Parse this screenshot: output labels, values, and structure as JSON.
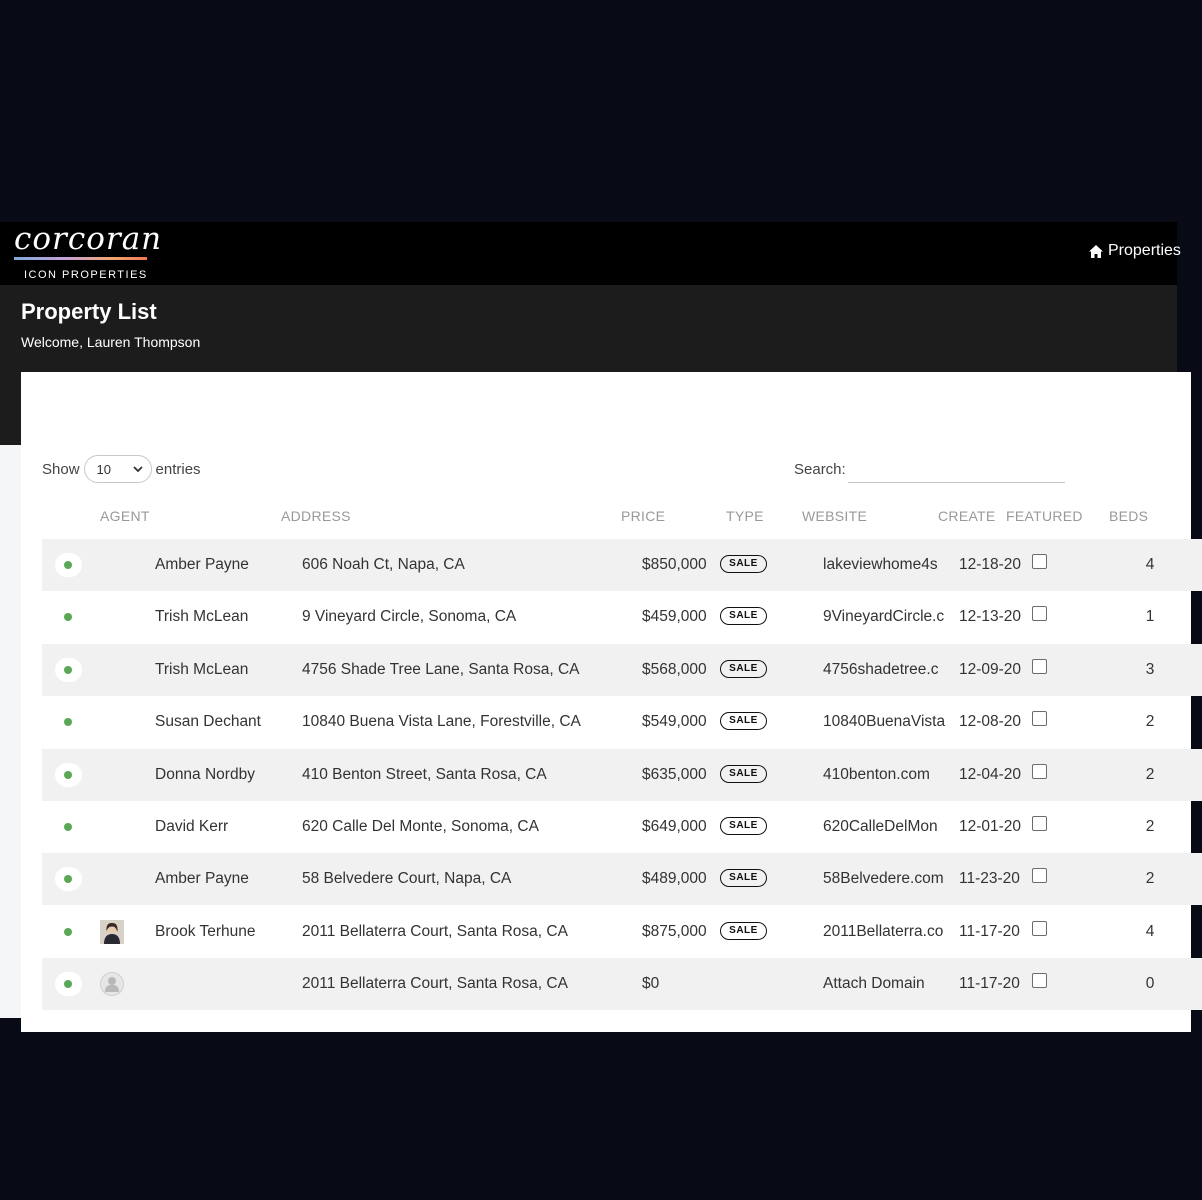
{
  "app": {
    "logo_word": "corcoran",
    "logo_sub": "ICON PROPERTIES",
    "nav_link": "Properties"
  },
  "header": {
    "title": "Property List",
    "welcome": "Welcome, Lauren Thompson"
  },
  "controls": {
    "show_label": "Show",
    "entries_label": "entries",
    "length_value": "10",
    "search_label": "Search:",
    "search_value": ""
  },
  "table": {
    "columns": [
      "AGENT",
      "ADDRESS",
      "PRICE",
      "TYPE",
      "WEBSITE",
      "CREATE",
      "FEATURED",
      "BEDS"
    ],
    "rows": [
      {
        "agent": "Amber Payne",
        "avatar": "none",
        "address": "606 Noah Ct, Napa, CA",
        "price": "$850,000",
        "type": "SALE",
        "website": "lakeviewhome4s",
        "created": "12-18-20",
        "featured": false,
        "beds": "4"
      },
      {
        "agent": "Trish McLean",
        "avatar": "none",
        "address": "9 Vineyard Circle, Sonoma, CA",
        "price": "$459,000",
        "type": "SALE",
        "website": "9VineyardCircle.c",
        "created": "12-13-20",
        "featured": false,
        "beds": "1"
      },
      {
        "agent": "Trish McLean",
        "avatar": "none",
        "address": "4756 Shade Tree Lane, Santa Rosa, CA",
        "price": "$568,000",
        "type": "SALE",
        "website": "4756shadetree.c",
        "created": "12-09-20",
        "featured": false,
        "beds": "3"
      },
      {
        "agent": "Susan Dechant",
        "avatar": "none",
        "address": "10840 Buena Vista Lane, Forestville, CA",
        "price": "$549,000",
        "type": "SALE",
        "website": "10840BuenaVista",
        "created": "12-08-20",
        "featured": false,
        "beds": "2"
      },
      {
        "agent": "Donna Nordby",
        "avatar": "none",
        "address": "410 Benton Street, Santa Rosa, CA",
        "price": "$635,000",
        "type": "SALE",
        "website": "410benton.com",
        "created": "12-04-20",
        "featured": false,
        "beds": "2"
      },
      {
        "agent": "David Kerr",
        "avatar": "none",
        "address": "620 Calle Del Monte, Sonoma, CA",
        "price": "$649,000",
        "type": "SALE",
        "website": "620CalleDelMon",
        "created": "12-01-20",
        "featured": false,
        "beds": "2"
      },
      {
        "agent": "Amber Payne",
        "avatar": "none",
        "address": "58 Belvedere Court, Napa, CA",
        "price": "$489,000",
        "type": "SALE",
        "website": "58Belvedere.com",
        "created": "11-23-20",
        "featured": false,
        "beds": "2"
      },
      {
        "agent": "Brook Terhune",
        "avatar": "photo",
        "address": "2011 Bellaterra Court, Santa Rosa, CA",
        "price": "$875,000",
        "type": "SALE",
        "website": "2011Bellaterra.co",
        "created": "11-17-20",
        "featured": false,
        "beds": "4"
      },
      {
        "agent": "",
        "avatar": "placeholder",
        "address": "2011 Bellaterra Court, Santa Rosa, CA",
        "price": "$0",
        "type": "",
        "website": "Attach Domain",
        "created": "11-17-20",
        "featured": false,
        "beds": "0"
      }
    ]
  },
  "colors": {
    "page_bg": "#080a16",
    "navbar": "#000000",
    "header_band": "#1c1c1d",
    "status_dot": "#5aa756"
  },
  "icons": {
    "nav_link_icon": "home-icon",
    "select_arrow": "chevron-down-icon",
    "status_icon": "status-dot-icon"
  }
}
